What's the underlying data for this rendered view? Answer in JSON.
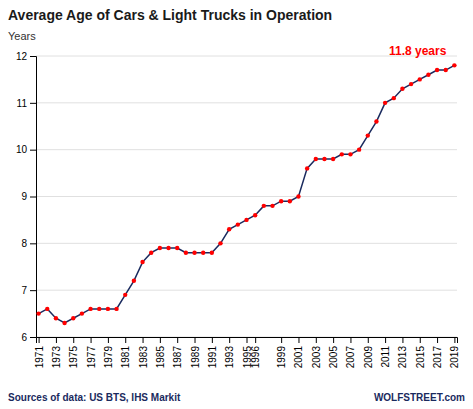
{
  "chart_data": {
    "type": "line",
    "title": "Average Age of Cars & Light Trucks in Operation",
    "ylabel": "Years",
    "source": "Sources of data: US BTS, IHS Markit",
    "watermark": "WOLFSTREET.com",
    "annotations": [
      {
        "text": "11.8 years",
        "x": 2019,
        "y": 11.8,
        "color": "#ff0000"
      }
    ],
    "x": [
      1971,
      1972,
      1973,
      1974,
      1975,
      1976,
      1977,
      1978,
      1979,
      1980,
      1981,
      1982,
      1983,
      1984,
      1985,
      1986,
      1987,
      1988,
      1989,
      1990,
      1991,
      1992,
      1993,
      1994,
      1995,
      1996,
      1997,
      1998,
      1999,
      2000,
      2001,
      2002,
      2003,
      2004,
      2005,
      2006,
      2007,
      2008,
      2009,
      2010,
      2011,
      2012,
      2013,
      2014,
      2015,
      2016,
      2017,
      2018,
      2019
    ],
    "values": [
      6.5,
      6.6,
      6.4,
      6.3,
      6.4,
      6.5,
      6.6,
      6.6,
      6.6,
      6.6,
      6.9,
      7.2,
      7.6,
      7.8,
      7.9,
      7.9,
      7.9,
      7.8,
      7.8,
      7.8,
      7.8,
      8.0,
      8.3,
      8.4,
      8.5,
      8.6,
      8.8,
      8.8,
      8.9,
      8.9,
      9.0,
      9.6,
      9.8,
      9.8,
      9.8,
      9.9,
      9.9,
      10.0,
      10.3,
      10.6,
      11.0,
      11.1,
      11.3,
      11.4,
      11.5,
      11.6,
      11.7,
      11.7,
      11.8
    ],
    "color": "#1a2a5e",
    "marker": "circle",
    "colors": [
      "#ff0000",
      "#ff0000",
      "#ff0000",
      "#ff0000",
      "#ff0000",
      "#ff0000",
      "#ff0000",
      "#ff0000",
      "#ff0000",
      "#ff0000",
      "#ff0000",
      "#ff0000",
      "#ff0000",
      "#ff0000",
      "#ff0000",
      "#ff0000",
      "#ff0000",
      "#ff0000",
      "#ff0000",
      "#ff0000",
      "#ff0000",
      "#ff0000",
      "#ff0000",
      "#ff0000",
      "#ff0000",
      "#ff0000",
      "#ff0000",
      "#ff0000",
      "#ff0000",
      "#ff0000",
      "#ff0000",
      "#ff0000",
      "#ff0000",
      "#ff0000",
      "#ff0000",
      "#ff0000",
      "#ff0000",
      "#ff0000",
      "#ff0000",
      "#ff0000",
      "#ff0000",
      "#ff0000",
      "#ff0000",
      "#ff0000",
      "#ff0000",
      "#ff0000",
      "#ff0000",
      "#ff0000",
      "#ff0000"
    ],
    "xlim": [
      1970.7,
      2019.3
    ],
    "xticks": [
      1971,
      1973,
      1975,
      1977,
      1979,
      1981,
      1983,
      1985,
      1987,
      1989,
      1991,
      1993,
      1995,
      1996,
      1999,
      2001,
      2003,
      2005,
      2007,
      2009,
      2011,
      2013,
      2015,
      2017,
      2019
    ],
    "ylim": [
      6,
      12
    ],
    "yticks": [
      6,
      7,
      8,
      9,
      10,
      11,
      12
    ],
    "grid": true
  }
}
